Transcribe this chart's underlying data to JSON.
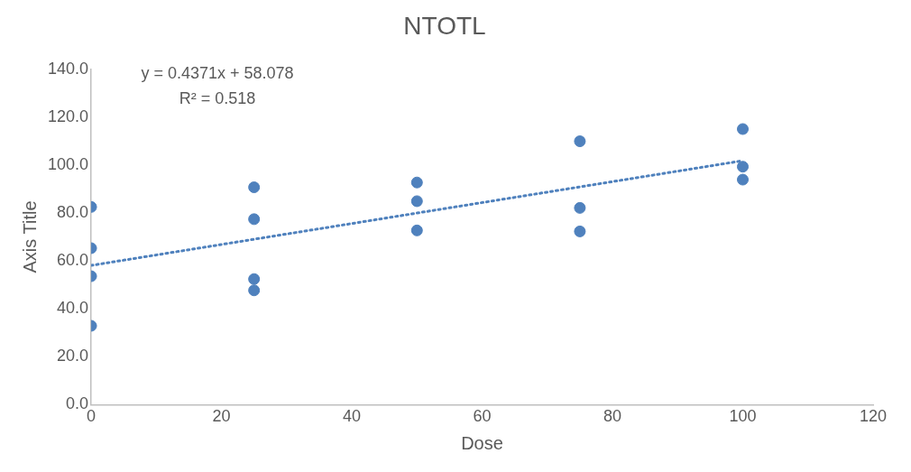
{
  "chart_data": {
    "type": "scatter",
    "title": "NTOTL",
    "xlabel": "Dose",
    "ylabel": "Axis Title",
    "xlim": [
      0,
      120
    ],
    "xticks": [
      0,
      20,
      40,
      60,
      80,
      100,
      120
    ],
    "ylim": [
      0,
      140
    ],
    "yticks": [
      {
        "value": 0,
        "label": "0.0"
      },
      {
        "value": 20,
        "label": "20.0"
      },
      {
        "value": 40,
        "label": "40.0"
      },
      {
        "value": 60,
        "label": "60.0"
      },
      {
        "value": 80,
        "label": "80.0"
      },
      {
        "value": 100,
        "label": "100.0"
      },
      {
        "value": 120,
        "label": "120.0"
      },
      {
        "value": 140,
        "label": "140.0"
      }
    ],
    "grid": false,
    "legend": false,
    "series": [
      {
        "color": "#4f81bd",
        "marker": "circle",
        "x": [
          0,
          0,
          0,
          0,
          25,
          25,
          25,
          25,
          50,
          50,
          50,
          75,
          75,
          75,
          100,
          100,
          100
        ],
        "values": [
          82.5,
          65.3,
          53.6,
          32.9,
          90.7,
          77.4,
          52.4,
          47.7,
          92.7,
          84.9,
          72.7,
          109.9,
          82.1,
          72.3,
          115,
          99.3,
          93.9
        ]
      },
      {
        "type": "line",
        "color": "#4f81bd",
        "line_style": "dotted",
        "marker": "none",
        "x": [
          0,
          100
        ],
        "values": [
          58.1,
          101.8
        ]
      }
    ],
    "annotations": [
      "y = 0.4371x + 58.078",
      "R² = 0.518"
    ]
  }
}
